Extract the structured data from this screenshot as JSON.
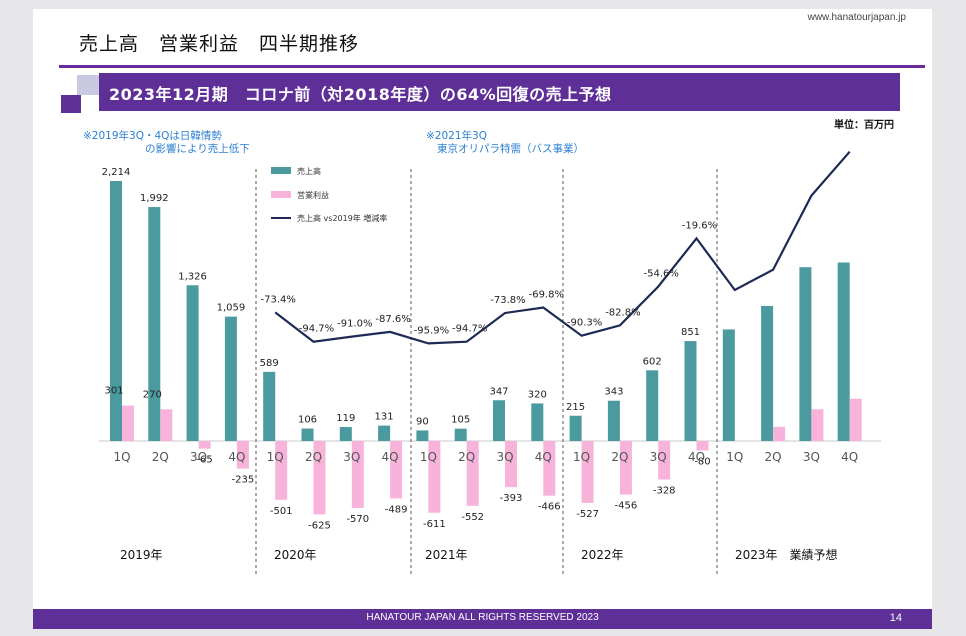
{
  "header": {
    "url": "www.hanatourjapan.jp",
    "title": "売上高　営業利益　四半期推移"
  },
  "banner": {
    "text": "2023年12月期　コロナ前（対2018年度）の64%回復の売上予想"
  },
  "unit_label": "単位：百万円",
  "notes": {
    "note1_line1": "※2019年3Q・4Qは日韓情勢",
    "note1_line2": "の影響により売上低下",
    "note2_line1": "※2021年3Q",
    "note2_line2": "東京オリパラ特需（バス事業）"
  },
  "chart_data": {
    "type": "bar",
    "years": [
      "2019年",
      "2020年",
      "2021年",
      "2022年",
      "2023年　業績予想"
    ],
    "categories": [
      "1Q",
      "2Q",
      "3Q",
      "4Q",
      "1Q",
      "2Q",
      "3Q",
      "4Q",
      "1Q",
      "2Q",
      "3Q",
      "4Q",
      "1Q",
      "2Q",
      "3Q",
      "4Q",
      "1Q",
      "2Q",
      "3Q",
      "4Q"
    ],
    "series": [
      {
        "name": "売上高",
        "type": "bar",
        "color": "#4a9aa0",
        "values": [
          2214,
          1992,
          1326,
          1059,
          589,
          106,
          119,
          131,
          90,
          105,
          347,
          320,
          215,
          343,
          602,
          851,
          950,
          1150,
          1480,
          1520
        ],
        "labels": [
          "2,214",
          "1,992",
          "1,326",
          "1,059",
          "589",
          "106",
          "119",
          "131",
          "90",
          "105",
          "347",
          "320",
          "215",
          "343",
          "602",
          "851",
          "",
          "",
          "",
          ""
        ]
      },
      {
        "name": "営業利益",
        "type": "bar",
        "color": "#f7b3d9",
        "values": [
          301,
          270,
          -65,
          -235,
          -501,
          -625,
          -570,
          -489,
          -611,
          -552,
          -393,
          -466,
          -527,
          -456,
          -328,
          -80,
          0,
          120,
          270,
          360
        ],
        "labels": [
          "301",
          "270",
          "-65",
          "-235",
          "-501",
          "-625",
          "-570",
          "-489",
          "-611",
          "-552",
          "-393",
          "-466",
          "-527",
          "-456",
          "-328",
          "-80",
          "",
          "",
          "",
          ""
        ]
      },
      {
        "name": "売上高 vs2019年 増減率",
        "type": "line",
        "color": "#1c2a55",
        "values": [
          null,
          null,
          null,
          null,
          -73.4,
          -94.7,
          -91.0,
          -87.6,
          -95.9,
          -94.7,
          -73.8,
          -69.8,
          -90.3,
          -82.8,
          -54.6,
          -19.6,
          -57.1,
          -42.3,
          11.6,
          43.5
        ],
        "labels": [
          "",
          "",
          "",
          "",
          "-73.4%",
          "-94.7%",
          "-91.0%",
          "-87.6%",
          "-95.9%",
          "-94.7%",
          "-73.8%",
          "-69.8%",
          "-90.3%",
          "-82.8%",
          "-54.6%",
          "-19.6%",
          "",
          "",
          "",
          ""
        ]
      }
    ],
    "legend": [
      "売上高",
      "営業利益",
      "売上高 vs2019年 増減率"
    ],
    "bar_ylim": [
      -720,
      2450
    ],
    "line_ylim": [
      -100,
      60
    ]
  },
  "footer": {
    "text": "HANATOUR JAPAN ALL RIGHTS RESERVED 2023",
    "page": "14"
  }
}
